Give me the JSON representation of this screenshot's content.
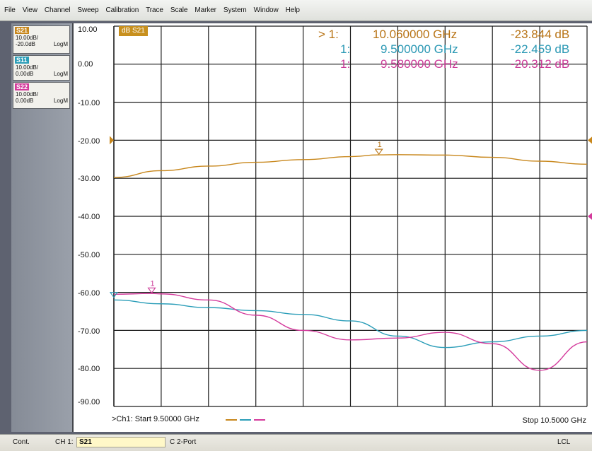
{
  "menu": [
    "File",
    "View",
    "Channel",
    "Sweep",
    "Calibration",
    "Trace",
    "Scale",
    "Marker",
    "System",
    "Window",
    "Help"
  ],
  "traces": [
    {
      "name": "S21",
      "scale": "10.00dB/",
      "ref": "-20.0dB",
      "format": "LogM",
      "color": "#c8871c"
    },
    {
      "name": "S11",
      "scale": "10.00dB/",
      "ref": "0.00dB",
      "format": "LogM",
      "color": "#2a9db8"
    },
    {
      "name": "S22",
      "scale": "10.00dB/",
      "ref": "0.00dB",
      "format": "LogM",
      "color": "#d43a9c"
    }
  ],
  "active_trace_label": "dB S21",
  "markers": [
    {
      "prefix": "> 1:",
      "freq": "10.060000 GHz",
      "value": "-23.844 dB",
      "color": "#b87416"
    },
    {
      "prefix": "1:",
      "freq": "9.500000 GHz",
      "value": "-22.459 dB",
      "color": "#2a98b4"
    },
    {
      "prefix": "1:",
      "freq": "9.580000 GHz",
      "value": "-20.312 dB",
      "color": "#cc3b98"
    }
  ],
  "marker_flags": {
    "s21": "1",
    "s22": "1"
  },
  "y_axis_labels": [
    "10.00",
    "0.00",
    "-10.00",
    "-20.00",
    "-30.00",
    "-40.00",
    "-50.00",
    "-60.00",
    "-70.00",
    "-80.00",
    "-90.00"
  ],
  "start_label": ">Ch1: Start  9.50000 GHz",
  "stop_label": "Stop  10.5000 GHz",
  "status": {
    "mode": "Cont.",
    "channel": "CH 1:",
    "param": "S21",
    "cal": "C  2-Port",
    "remote": "LCL"
  },
  "chart_data": {
    "type": "line",
    "x_range_ghz": [
      9.5,
      10.5
    ],
    "ylim": [
      -90,
      10
    ],
    "y_ticks": [
      10,
      0,
      -10,
      -20,
      -30,
      -40,
      -50,
      -60,
      -70,
      -80,
      -90
    ],
    "grid": true,
    "series": [
      {
        "name": "S21",
        "color": "#c8871c",
        "x": [
          9.5,
          9.6,
          9.7,
          9.8,
          9.9,
          10.0,
          10.06,
          10.1,
          10.2,
          10.3,
          10.4,
          10.5
        ],
        "y": [
          -29.8,
          -28.0,
          -26.8,
          -25.8,
          -25.1,
          -24.3,
          -23.844,
          -23.8,
          -23.9,
          -24.5,
          -25.5,
          -26.3
        ]
      },
      {
        "name": "S11",
        "color": "#2a9db8",
        "x": [
          9.5,
          9.6,
          9.7,
          9.8,
          9.9,
          10.0,
          10.1,
          10.2,
          10.3,
          10.4,
          10.5
        ],
        "y": [
          -62.0,
          -63.0,
          -64.0,
          -64.8,
          -65.8,
          -67.5,
          -71.5,
          -74.5,
          -73.0,
          -71.5,
          -70.0
        ]
      },
      {
        "name": "S22",
        "color": "#d43a9c",
        "x": [
          9.5,
          9.58,
          9.6,
          9.7,
          9.8,
          9.9,
          10.0,
          10.1,
          10.2,
          10.3,
          10.4,
          10.5
        ],
        "y": [
          -60.5,
          -60.3,
          -60.4,
          -62.0,
          -66.0,
          -70.0,
          -72.5,
          -72.0,
          -70.5,
          -73.5,
          -80.5,
          -73.0
        ]
      }
    ]
  }
}
